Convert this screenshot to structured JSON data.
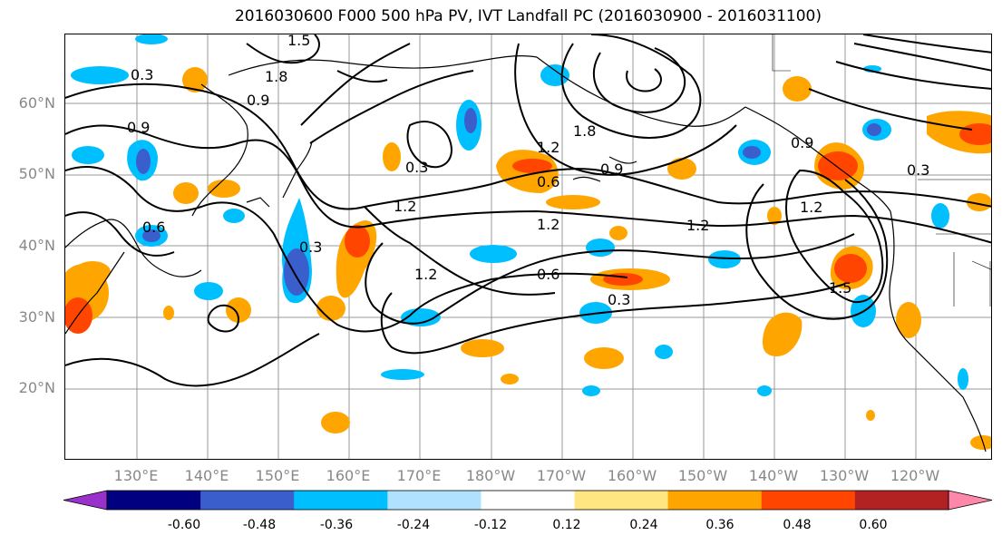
{
  "title": "2016030600 F000 500 hPa PV, IVT Landfall PC (2016030900 - 2016031100)",
  "lat_labels": [
    "60°N",
    "50°N",
    "40°N",
    "30°N",
    "20°N"
  ],
  "lon_labels": [
    "130°E",
    "140°E",
    "150°E",
    "160°E",
    "170°E",
    "180°W",
    "170°W",
    "160°W",
    "150°W",
    "140°W",
    "130°W",
    "120°W"
  ],
  "contour_labels": [
    "0.3",
    "0.9",
    "1.8",
    "1.5",
    "0.9",
    "1.2",
    "1.8",
    "0.9",
    "0.6",
    "1.2",
    "1.2",
    "1.2",
    "0.6",
    "0.3",
    "1.2",
    "0.3",
    "0.6",
    "1.5",
    "0.3",
    "0.9",
    "0.3",
    "1.2"
  ],
  "colorbar": {
    "colors": [
      "#9932cc",
      "#000080",
      "#3a5fcd",
      "#00bfff",
      "#b0e2ff",
      "#ffffff",
      "#ffe680",
      "#ffa500",
      "#ff4500",
      "#b22222",
      "#ff88aa"
    ],
    "tick_labels": [
      "-0.60",
      "-0.48",
      "-0.36",
      "-0.24",
      "-0.12",
      "0.12",
      "0.24",
      "0.36",
      "0.48",
      "0.60"
    ]
  }
}
